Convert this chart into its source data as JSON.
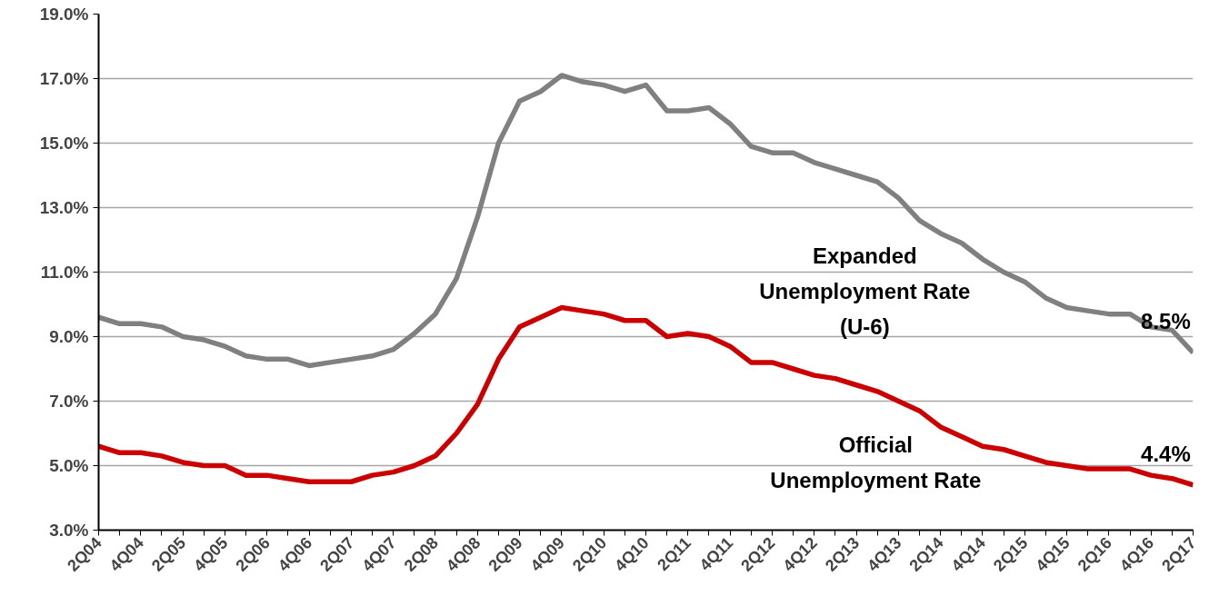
{
  "chart_data": {
    "type": "line",
    "categories": [
      "2Q04",
      null,
      "4Q04",
      null,
      "2Q05",
      null,
      "4Q05",
      null,
      "2Q06",
      null,
      "4Q06",
      null,
      "2Q07",
      null,
      "4Q07",
      null,
      "2Q08",
      null,
      "4Q08",
      null,
      "2Q09",
      null,
      "4Q09",
      null,
      "2Q10",
      null,
      "4Q10",
      null,
      "2Q11",
      null,
      "4Q11",
      null,
      "2Q12",
      null,
      "4Q12",
      null,
      "2Q13",
      null,
      "4Q13",
      null,
      "2Q14",
      null,
      "4Q14",
      null,
      "2Q15",
      null,
      "4Q15",
      null,
      "2Q16",
      null,
      "4Q16",
      null,
      "2Q17"
    ],
    "series": [
      {
        "name": "Expanded Unemployment Rate (U-6)",
        "color": "#808080",
        "values": [
          9.6,
          9.4,
          9.4,
          9.3,
          9.0,
          8.9,
          8.7,
          8.4,
          8.3,
          8.3,
          8.1,
          8.2,
          8.3,
          8.4,
          8.6,
          9.1,
          9.7,
          10.8,
          12.7,
          15.0,
          16.3,
          16.6,
          17.1,
          16.9,
          16.8,
          16.6,
          16.8,
          16.0,
          16.0,
          16.1,
          15.6,
          14.9,
          14.7,
          14.7,
          14.4,
          14.2,
          14.0,
          13.8,
          13.3,
          12.6,
          12.2,
          11.9,
          11.4,
          11.0,
          10.7,
          10.2,
          9.9,
          9.8,
          9.7,
          9.7,
          9.3,
          9.2,
          8.5
        ],
        "value_labels": [
          null,
          null,
          null,
          null,
          null,
          null,
          null,
          null,
          null,
          null,
          null,
          null,
          null,
          null,
          null,
          null,
          null,
          null,
          null,
          null,
          null,
          null,
          null,
          null,
          null,
          null,
          null,
          null,
          null,
          null,
          null,
          null,
          null,
          null,
          null,
          null,
          null,
          null,
          null,
          null,
          null,
          null,
          null,
          null,
          null,
          null,
          null,
          null,
          null,
          null,
          null,
          null,
          "8.5%"
        ]
      },
      {
        "name": "Official Unemployment Rate",
        "color": "#cc0000",
        "values": [
          5.6,
          5.4,
          5.4,
          5.3,
          5.1,
          5.0,
          5.0,
          4.7,
          4.7,
          4.6,
          4.5,
          4.5,
          4.5,
          4.7,
          4.8,
          5.0,
          5.3,
          6.0,
          6.9,
          8.3,
          9.3,
          9.6,
          9.9,
          9.8,
          9.7,
          9.5,
          9.5,
          9.0,
          9.1,
          9.0,
          8.7,
          8.2,
          8.2,
          8.0,
          7.8,
          7.7,
          7.5,
          7.3,
          7.0,
          6.7,
          6.2,
          5.9,
          5.6,
          5.5,
          5.3,
          5.1,
          5.0,
          4.9,
          4.9,
          4.9,
          4.7,
          4.6,
          4.4
        ],
        "value_labels": [
          null,
          null,
          null,
          null,
          null,
          null,
          null,
          null,
          null,
          null,
          null,
          null,
          null,
          null,
          null,
          null,
          null,
          null,
          null,
          null,
          null,
          null,
          null,
          null,
          null,
          null,
          null,
          null,
          null,
          null,
          null,
          null,
          null,
          null,
          null,
          null,
          null,
          null,
          null,
          null,
          null,
          null,
          null,
          null,
          null,
          null,
          null,
          null,
          null,
          null,
          null,
          null,
          "4.4%"
        ]
      }
    ],
    "ylim": [
      3,
      19
    ],
    "yticks": [
      {
        "value": 3,
        "label": "3.0%"
      },
      {
        "value": 5,
        "label": "5.0%"
      },
      {
        "value": 7,
        "label": "7.0%"
      },
      {
        "value": 9,
        "label": "9.0%"
      },
      {
        "value": 11,
        "label": "11.0%"
      },
      {
        "value": 13,
        "label": "13.0%"
      },
      {
        "value": 15,
        "label": "15.0%"
      },
      {
        "value": 17,
        "label": "17.0%"
      },
      {
        "value": 19,
        "label": "19.0%"
      }
    ],
    "grid": "y",
    "legend": false,
    "marker": "none",
    "line_style": "solid"
  }
}
